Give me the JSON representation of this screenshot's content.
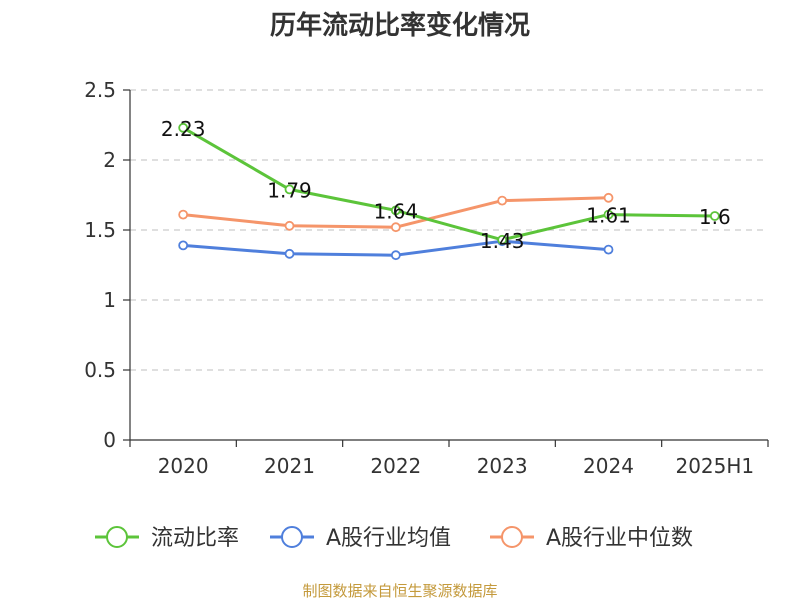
{
  "chart_data": {
    "type": "line",
    "title": "历年流动比率变化情况",
    "categories": [
      "2020",
      "2021",
      "2022",
      "2023",
      "2024",
      "2025H1"
    ],
    "ylim": [
      0,
      2.5
    ],
    "yticks": [
      "0",
      "0.5",
      "1",
      "1.5",
      "2",
      "2.5"
    ],
    "grid": true,
    "legend_position": "bottom",
    "series": [
      {
        "name": "流动比率",
        "color": "#5cc43a",
        "values": [
          2.23,
          1.79,
          1.64,
          1.43,
          1.61,
          1.6
        ],
        "labels": [
          "2.23",
          "1.79",
          "1.64",
          "1.43",
          "1.61",
          "1.6"
        ]
      },
      {
        "name": "A股行业均值",
        "color": "#4f7fdc",
        "values": [
          1.39,
          1.33,
          1.32,
          1.42,
          1.36,
          null
        ]
      },
      {
        "name": "A股行业中位数",
        "color": "#f5956a",
        "values": [
          1.61,
          1.53,
          1.52,
          1.71,
          1.73,
          null
        ]
      }
    ]
  },
  "source": "制图数据来自恒生聚源数据库"
}
